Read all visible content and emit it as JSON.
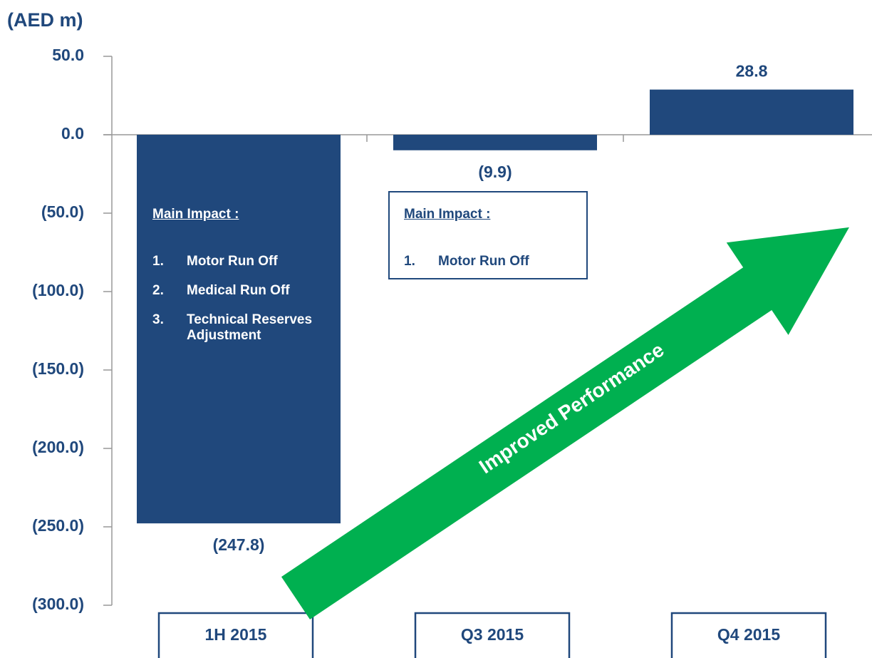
{
  "chart_data": {
    "type": "bar",
    "y_label": "(AED m)",
    "categories": [
      "1H 2015",
      "Q3 2015",
      "Q4 2015"
    ],
    "values": [
      -247.8,
      -9.9,
      28.8
    ],
    "value_labels": [
      "(247.8)",
      "(9.9)",
      "28.8"
    ],
    "color": "#20487c",
    "ylim": [
      -300,
      50
    ],
    "yticks": [
      {
        "value": 50,
        "label": "50.0"
      },
      {
        "value": 0,
        "label": "0.0"
      },
      {
        "value": -50,
        "label": "(50.0)"
      },
      {
        "value": -100,
        "label": "(100.0)"
      },
      {
        "value": -150,
        "label": "(150.0)"
      },
      {
        "value": -200,
        "label": "(200.0)"
      },
      {
        "value": -250,
        "label": "(250.0)"
      },
      {
        "value": -300,
        "label": "(300.0)"
      }
    ],
    "grid": false,
    "annotations": [
      {
        "title": "Main Impact :",
        "items": [
          {
            "number": "1.",
            "text": "Motor Run Off"
          },
          {
            "number": "2.",
            "text": "Medical Run Off"
          },
          {
            "number": "3.",
            "text": "Technical Reserves Adjustment"
          }
        ]
      },
      {
        "title": "Main Impact :",
        "items": [
          {
            "number": "1.",
            "text": "Motor Run Off"
          }
        ]
      }
    ],
    "arrow_label": "Improved Performance"
  }
}
